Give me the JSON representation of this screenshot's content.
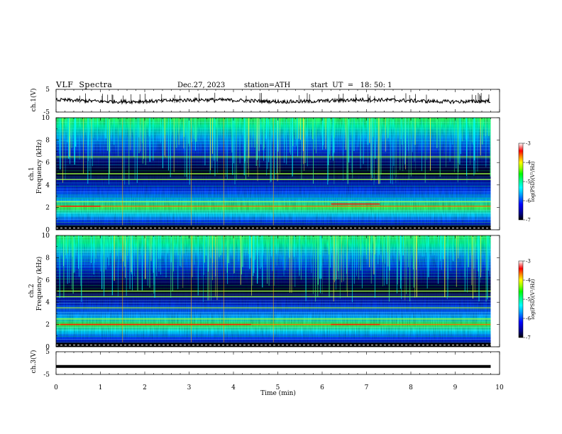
{
  "header": {
    "title": "VLF  Spectra",
    "date": "Dec.27, 2023",
    "station": "station=ATH",
    "start": "start  UT  =   18: 50: 1"
  },
  "chart_data": {
    "type": "heatmap",
    "x_axis": {
      "label": "Time  (min)",
      "range": [
        0,
        10
      ],
      "ticks": [
        "0",
        "1",
        "2",
        "3",
        "4",
        "5",
        "6",
        "7",
        "8",
        "9",
        "10"
      ]
    },
    "panels": [
      {
        "id": "ch1-waveform",
        "type": "line",
        "ylabel": "ch.1(V)",
        "ylim": [
          -5,
          5
        ],
        "yticks": [
          "5",
          "-5"
        ],
        "baseline": 0,
        "data_end_min": 9.8
      },
      {
        "id": "ch1-spectrogram",
        "type": "heatmap",
        "ylabel": "ch.1\nFrequency  (kHz)",
        "ylim": [
          0,
          10
        ],
        "yticks": [
          "0",
          "2",
          "4",
          "6",
          "8",
          "10"
        ],
        "data_end_min": 9.8,
        "persistent_lines_khz": [
          2.1,
          2.5,
          4.5,
          5.0,
          6.5
        ]
      },
      {
        "id": "ch2-spectrogram",
        "type": "heatmap",
        "ylabel": "ch.2\nFrequency  (kHz)",
        "ylim": [
          0,
          10
        ],
        "yticks": [
          "0",
          "2",
          "4",
          "6",
          "8",
          "10"
        ],
        "data_end_min": 9.8,
        "persistent_lines_khz": [
          2.0,
          2.5,
          3.5,
          4.5,
          5.0
        ]
      },
      {
        "id": "ch3-waveform",
        "type": "line",
        "ylabel": "ch.3(V)",
        "ylim": [
          -5,
          5
        ],
        "yticks": [
          "5",
          "-5"
        ],
        "baseline": -1.5,
        "data_end_min": 9.8
      }
    ],
    "colorbar": {
      "label": "log(PSD)(V²/Hz)",
      "range": [
        -7,
        -3
      ],
      "ticks": [
        "-3",
        "-4",
        "-5",
        "-6",
        "-7"
      ],
      "colors": [
        "#000000",
        "#000080",
        "#0000ff",
        "#00a0ff",
        "#00ffff",
        "#00ff80",
        "#00ff00",
        "#a0ff00",
        "#ffff00",
        "#ff8000",
        "#ff0000",
        "#ffffff"
      ]
    }
  }
}
